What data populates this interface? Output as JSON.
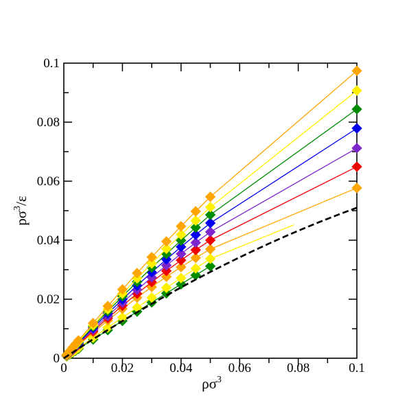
{
  "figure": {
    "background_color": "#ffffff",
    "frame_color": "#000000"
  },
  "chart_data": {
    "type": "line",
    "title": "",
    "xlabel": "ρσ^3",
    "ylabel": "pσ^3/ε",
    "xlabel_parts": {
      "base": "ρσ",
      "sup": "3"
    },
    "ylabel_parts": {
      "base": "pσ",
      "sup": "3",
      "suffix": "/ε"
    },
    "xlim": [
      0,
      0.1
    ],
    "ylim": [
      0,
      0.1
    ],
    "grid": false,
    "legend": false,
    "marker": "diamond",
    "x_tick_values": [
      0,
      0.02,
      0.04,
      0.06,
      0.08,
      0.1
    ],
    "x_tick_labels": [
      "0",
      "0.02",
      "0.04",
      "0.06",
      "0.08",
      "0.1"
    ],
    "y_tick_values": [
      0,
      0.02,
      0.04,
      0.06,
      0.08,
      0.1
    ],
    "y_tick_labels": [
      "0",
      "0.02",
      "0.04",
      "0.06",
      "0.08",
      "0.1"
    ],
    "minor_tick_step": 0.01,
    "series": [
      {
        "name": "isotherm-1-orange",
        "color": "#FFA500",
        "marker": "diamond",
        "x": [
          0,
          0.001,
          0.002,
          0.003,
          0.004,
          0.005,
          0.01,
          0.015,
          0.02,
          0.025,
          0.03,
          0.035,
          0.04,
          0.045,
          0.05,
          0.1
        ],
        "y": [
          0,
          0.00121,
          0.00242,
          0.00362,
          0.00482,
          0.00601,
          0.0119,
          0.01767,
          0.02332,
          0.02885,
          0.03426,
          0.03955,
          0.04472,
          0.04977,
          0.0547,
          0.0974
        ]
      },
      {
        "name": "isotherm-2-yellow",
        "color": "#FFF000",
        "marker": "diamond",
        "x": [
          0,
          0.001,
          0.002,
          0.003,
          0.004,
          0.005,
          0.01,
          0.015,
          0.02,
          0.025,
          0.03,
          0.035,
          0.04,
          0.045,
          0.05,
          0.1
        ],
        "y": [
          0,
          0.00114,
          0.00227,
          0.0034,
          0.00453,
          0.00565,
          0.01118,
          0.01659,
          0.02188,
          0.02706,
          0.03212,
          0.03707,
          0.0419,
          0.04661,
          0.0512,
          0.0907
        ]
      },
      {
        "name": "isotherm-3-green",
        "color": "#008B00",
        "marker": "diamond",
        "x": [
          0,
          0.001,
          0.002,
          0.003,
          0.004,
          0.005,
          0.01,
          0.015,
          0.02,
          0.025,
          0.03,
          0.035,
          0.04,
          0.045,
          0.05,
          0.1
        ],
        "y": [
          0,
          0.0011,
          0.00219,
          0.00328,
          0.00436,
          0.00544,
          0.01074,
          0.01592,
          0.02098,
          0.0259,
          0.0307,
          0.03536,
          0.0399,
          0.04432,
          0.0486,
          0.0844
        ]
      },
      {
        "name": "isotherm-4-blue",
        "color": "#0000EE",
        "marker": "diamond",
        "x": [
          0,
          0.001,
          0.002,
          0.003,
          0.004,
          0.005,
          0.01,
          0.015,
          0.02,
          0.025,
          0.03,
          0.035,
          0.04,
          0.045,
          0.05,
          0.1
        ],
        "y": [
          0,
          0.00105,
          0.0021,
          0.00313,
          0.00417,
          0.0052,
          0.01026,
          0.01518,
          0.01996,
          0.02461,
          0.02912,
          0.0335,
          0.03774,
          0.04184,
          0.0458,
          0.0779
        ]
      },
      {
        "name": "isotherm-5-purple",
        "color": "#7D26CD",
        "marker": "diamond",
        "x": [
          0,
          0.001,
          0.002,
          0.003,
          0.004,
          0.005,
          0.01,
          0.015,
          0.02,
          0.025,
          0.03,
          0.035,
          0.04,
          0.045,
          0.05,
          0.1
        ],
        "y": [
          0,
          0.001,
          0.00199,
          0.00297,
          0.00395,
          0.00493,
          0.00971,
          0.01435,
          0.01885,
          0.0232,
          0.02741,
          0.03147,
          0.03539,
          0.03917,
          0.0428,
          0.0712
        ]
      },
      {
        "name": "isotherm-6-red",
        "color": "#EE0000",
        "marker": "diamond",
        "x": [
          0,
          0.001,
          0.002,
          0.003,
          0.004,
          0.005,
          0.01,
          0.015,
          0.02,
          0.025,
          0.03,
          0.035,
          0.04,
          0.045,
          0.05,
          0.1
        ],
        "y": [
          0,
          0.00095,
          0.00189,
          0.00283,
          0.00376,
          0.00468,
          0.00921,
          0.01359,
          0.01781,
          0.02189,
          0.02581,
          0.02959,
          0.03321,
          0.03668,
          0.04,
          0.0649
        ]
      },
      {
        "name": "isotherm-7-orange",
        "color": "#FFA500",
        "marker": "diamond",
        "x": [
          0,
          0.001,
          0.002,
          0.003,
          0.004,
          0.005,
          0.01,
          0.015,
          0.02,
          0.025,
          0.03,
          0.035,
          0.04,
          0.045,
          0.05,
          0.1
        ],
        "y": [
          0,
          0.0009,
          0.00179,
          0.00268,
          0.00356,
          0.00443,
          0.0087,
          0.01281,
          0.01676,
          0.02054,
          0.02416,
          0.02762,
          0.0309,
          0.03402,
          0.03698,
          0.0577
        ]
      },
      {
        "name": "isotherm-8-yellow",
        "color": "#FFF000",
        "marker": "diamond",
        "x": [
          0,
          0.001,
          0.002,
          0.003,
          0.004,
          0.005,
          0.01,
          0.015,
          0.02,
          0.025,
          0.03,
          0.035,
          0.04,
          0.045,
          0.05
        ],
        "y": [
          0,
          0.0007,
          0.0014,
          0.0021,
          0.0028,
          0.0035,
          0.00696,
          0.0104,
          0.01382,
          0.0172,
          0.02056,
          0.02389,
          0.02718,
          0.03045,
          0.0337
        ],
        "line_extension": {
          "x": 0.0785,
          "y": 0.0452
        }
      },
      {
        "name": "isotherm-9-green",
        "color": "#008B00",
        "marker": "diamond",
        "x": [
          0,
          0.001,
          0.002,
          0.003,
          0.004,
          0.005,
          0.01,
          0.015,
          0.02,
          0.025,
          0.03,
          0.035,
          0.04,
          0.045,
          0.05
        ],
        "y": [
          0,
          0.00064,
          0.00128,
          0.00192,
          0.00256,
          0.0032,
          0.00637,
          0.00953,
          0.01267,
          0.0158,
          0.01891,
          0.02201,
          0.02509,
          0.02815,
          0.0312
        ]
      },
      {
        "name": "reference-curve-dashed",
        "color": "#000000",
        "style": "dashed",
        "marker": "none",
        "x": [
          0,
          0.005,
          0.01,
          0.015,
          0.02,
          0.025,
          0.03,
          0.035,
          0.04,
          0.045,
          0.05,
          0.055,
          0.06,
          0.065,
          0.07,
          0.075,
          0.08,
          0.085,
          0.09,
          0.095,
          0.1
        ],
        "y": [
          0,
          0.00326,
          0.00645,
          0.00956,
          0.0126,
          0.01556,
          0.01845,
          0.02126,
          0.024,
          0.02666,
          0.02925,
          0.03176,
          0.0342,
          0.03656,
          0.03885,
          0.04106,
          0.0432,
          0.04526,
          0.04725,
          0.04916,
          0.051
        ]
      }
    ]
  }
}
